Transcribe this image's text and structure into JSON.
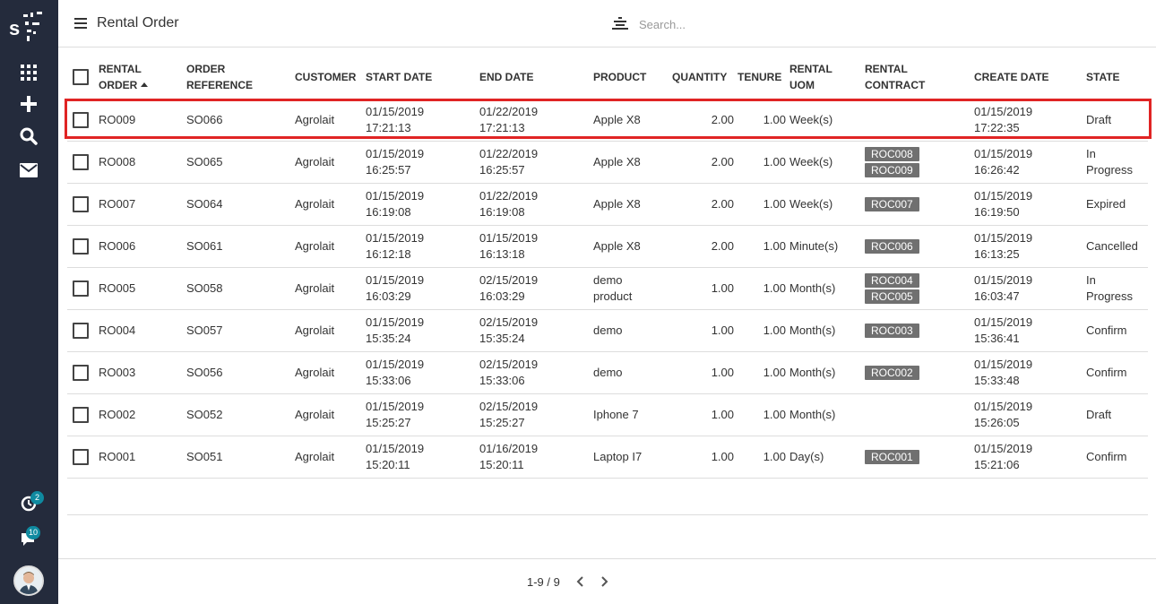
{
  "header": {
    "title": "Rental Order",
    "search_placeholder": "Search..."
  },
  "sidebar": {
    "activity_badge": "2",
    "messages_badge": "10"
  },
  "columns": [
    "RENTAL ORDER",
    "ORDER REFERENCE",
    "CUSTOMER",
    "START DATE",
    "END DATE",
    "PRODUCT",
    "QUANTITY",
    "TENURE",
    "RENTAL UOM",
    "RENTAL CONTRACT",
    "CREATE DATE",
    "STATE"
  ],
  "column_lines": {
    "rental_order": [
      "RENTAL",
      "ORDER"
    ],
    "order_reference": [
      "ORDER",
      "REFERENCE"
    ],
    "rental_uom": [
      "RENTAL",
      "UOM"
    ],
    "rental_contract": [
      "RENTAL",
      "CONTRACT"
    ]
  },
  "rows": [
    {
      "order": "RO009",
      "ref": "SO066",
      "customer": "Agrolait",
      "start_date": "01/15/2019",
      "start_time": "17:21:13",
      "end_date": "01/22/2019",
      "end_time": "17:21:13",
      "product": "Apple X8",
      "quantity": "2.00",
      "tenure": "1.00",
      "uom": "Week(s)",
      "contracts": [],
      "create_date": "01/15/2019",
      "create_time": "17:22:35",
      "state": "Draft"
    },
    {
      "order": "RO008",
      "ref": "SO065",
      "customer": "Agrolait",
      "start_date": "01/15/2019",
      "start_time": "16:25:57",
      "end_date": "01/22/2019",
      "end_time": "16:25:57",
      "product": "Apple X8",
      "quantity": "2.00",
      "tenure": "1.00",
      "uom": "Week(s)",
      "contracts": [
        "ROC008",
        "ROC009"
      ],
      "create_date": "01/15/2019",
      "create_time": "16:26:42",
      "state": "In Progress"
    },
    {
      "order": "RO007",
      "ref": "SO064",
      "customer": "Agrolait",
      "start_date": "01/15/2019",
      "start_time": "16:19:08",
      "end_date": "01/22/2019",
      "end_time": "16:19:08",
      "product": "Apple X8",
      "quantity": "2.00",
      "tenure": "1.00",
      "uom": "Week(s)",
      "contracts": [
        "ROC007"
      ],
      "create_date": "01/15/2019",
      "create_time": "16:19:50",
      "state": "Expired"
    },
    {
      "order": "RO006",
      "ref": "SO061",
      "customer": "Agrolait",
      "start_date": "01/15/2019",
      "start_time": "16:12:18",
      "end_date": "01/15/2019",
      "end_time": "16:13:18",
      "product": "Apple X8",
      "quantity": "2.00",
      "tenure": "1.00",
      "uom": "Minute(s)",
      "contracts": [
        "ROC006"
      ],
      "create_date": "01/15/2019",
      "create_time": "16:13:25",
      "state": "Cancelled"
    },
    {
      "order": "RO005",
      "ref": "SO058",
      "customer": "Agrolait",
      "start_date": "01/15/2019",
      "start_time": "16:03:29",
      "end_date": "02/15/2019",
      "end_time": "16:03:29",
      "product": "demo product",
      "quantity": "1.00",
      "tenure": "1.00",
      "uom": "Month(s)",
      "contracts": [
        "ROC004",
        "ROC005"
      ],
      "create_date": "01/15/2019",
      "create_time": "16:03:47",
      "state": "In Progress"
    },
    {
      "order": "RO004",
      "ref": "SO057",
      "customer": "Agrolait",
      "start_date": "01/15/2019",
      "start_time": "15:35:24",
      "end_date": "02/15/2019",
      "end_time": "15:35:24",
      "product": "demo",
      "quantity": "1.00",
      "tenure": "1.00",
      "uom": "Month(s)",
      "contracts": [
        "ROC003"
      ],
      "create_date": "01/15/2019",
      "create_time": "15:36:41",
      "state": "Confirm"
    },
    {
      "order": "RO003",
      "ref": "SO056",
      "customer": "Agrolait",
      "start_date": "01/15/2019",
      "start_time": "15:33:06",
      "end_date": "02/15/2019",
      "end_time": "15:33:06",
      "product": "demo",
      "quantity": "1.00",
      "tenure": "1.00",
      "uom": "Month(s)",
      "contracts": [
        "ROC002"
      ],
      "create_date": "01/15/2019",
      "create_time": "15:33:48",
      "state": "Confirm"
    },
    {
      "order": "RO002",
      "ref": "SO052",
      "customer": "Agrolait",
      "start_date": "01/15/2019",
      "start_time": "15:25:27",
      "end_date": "02/15/2019",
      "end_time": "15:25:27",
      "product": "Iphone 7",
      "quantity": "1.00",
      "tenure": "1.00",
      "uom": "Month(s)",
      "contracts": [],
      "create_date": "01/15/2019",
      "create_time": "15:26:05",
      "state": "Draft"
    },
    {
      "order": "RO001",
      "ref": "SO051",
      "customer": "Agrolait",
      "start_date": "01/15/2019",
      "start_time": "15:20:11",
      "end_date": "01/16/2019",
      "end_time": "15:20:11",
      "product": "Laptop I7",
      "quantity": "1.00",
      "tenure": "1.00",
      "uom": "Day(s)",
      "contracts": [
        "ROC001"
      ],
      "create_date": "01/15/2019",
      "create_time": "15:21:06",
      "state": "Confirm"
    }
  ],
  "pager": {
    "range": "1-9 / 9"
  },
  "colors": {
    "sidebar": "#242b3c",
    "badge": "#0f8aa0",
    "tag": "#707070",
    "highlight": "#e02424"
  }
}
